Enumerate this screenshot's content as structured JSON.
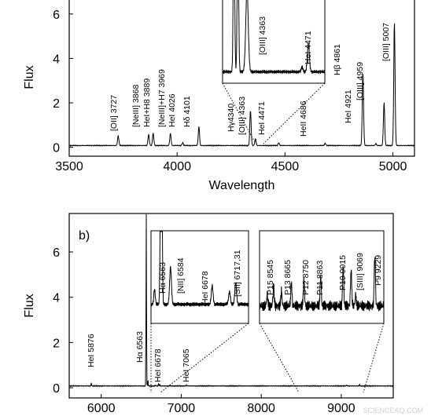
{
  "chart_data": [
    {
      "type": "line",
      "panel_label": "",
      "xlabel": "Wavelength",
      "ylabel": "Flux",
      "xlim": [
        3500,
        5100
      ],
      "ylim": [
        -0.4,
        6.7
      ],
      "xticks": [
        "3500",
        "4000",
        "4500",
        "5000"
      ],
      "yticks": [
        "0",
        "2",
        "4",
        "6"
      ],
      "xtick_values": [
        3500,
        4000,
        4500,
        5000
      ],
      "ytick_values": [
        0,
        2,
        4,
        6
      ],
      "lines": [
        {
          "label": "[OII] 3727",
          "x": 3727,
          "peak": 0.45
        },
        {
          "label": "[NeIII] 3868",
          "x": 3868,
          "peak": 0.5
        },
        {
          "label": "HeI+H8 3889",
          "x": 3889,
          "peak": 0.55
        },
        {
          "label": "[NeIII]+H7 3969",
          "x": 3969,
          "peak": 0.55
        },
        {
          "label": "HeI 4026",
          "x": 4026,
          "peak": 0.12
        },
        {
          "label": "Hδ 4101",
          "x": 4101,
          "peak": 0.85
        },
        {
          "label": "Hγ4340",
          "x": 4340,
          "peak": 1.6
        },
        {
          "label": "[OIII] 4363",
          "x": 4363,
          "peak": 0.3
        },
        {
          "label": "HeI 4471",
          "x": 4471,
          "peak": 0.12
        },
        {
          "label": "HeII 4686",
          "x": 4686,
          "peak": 0.1
        },
        {
          "label": "Hβ 4861",
          "x": 4861,
          "peak": 3.3
        },
        {
          "label": "HeI 4921",
          "x": 4921,
          "peak": 0.08
        },
        {
          "label": "[OIII] 4959",
          "x": 4959,
          "peak": 1.95
        },
        {
          "label": "[OIII] 5007",
          "x": 5007,
          "peak": 5.6
        }
      ],
      "inset": {
        "lines": [
          {
            "label": "[OIII] 4363",
            "x": 4363
          },
          {
            "label": "HeI 4471",
            "x": 4471
          }
        ]
      }
    },
    {
      "type": "line",
      "panel_label": "b)",
      "xlabel": "",
      "ylabel": "Flux",
      "xlim": [
        5600,
        9650
      ],
      "ylim": [
        -0.45,
        7.7
      ],
      "xticks": [
        "6000",
        "7000",
        "8000",
        "9000"
      ],
      "yticks": [
        "0",
        "2",
        "4",
        "6"
      ],
      "xtick_values": [
        6000,
        7000,
        8000,
        9000
      ],
      "ytick_values": [
        0,
        2,
        4,
        6
      ],
      "lines": [
        {
          "label": "HeI 5876",
          "x": 5876,
          "peak": 0.15
        },
        {
          "label": "Hα 6563",
          "x": 6563,
          "peak": 7.6
        },
        {
          "label": "HeI 6678",
          "x": 6678,
          "peak": 0.05
        },
        {
          "label": "HeI 7065",
          "x": 7065,
          "peak": 0.04
        }
      ],
      "inset_left": {
        "lines": [
          {
            "label": "Hα 6563",
            "x": 6563
          },
          {
            "label": "[NII] 6584",
            "x": 6584
          },
          {
            "label": "HeI 6678",
            "x": 6678
          },
          {
            "label": "[SII] 6717,31",
            "x": 6724
          }
        ]
      },
      "inset_right": {
        "lines": [
          {
            "label": "P15 8545",
            "x": 8545
          },
          {
            "label": "P13 8665",
            "x": 8665
          },
          {
            "label": "P12 8750",
            "x": 8750
          },
          {
            "label": "P11 8863",
            "x": 8863
          },
          {
            "label": "P10 9015",
            "x": 9015
          },
          {
            "label": "[SIII] 9069",
            "x": 9069
          },
          {
            "label": "P9 9229",
            "x": 9229
          }
        ]
      }
    }
  ],
  "watermark": "SCIENCEAQ.COM"
}
